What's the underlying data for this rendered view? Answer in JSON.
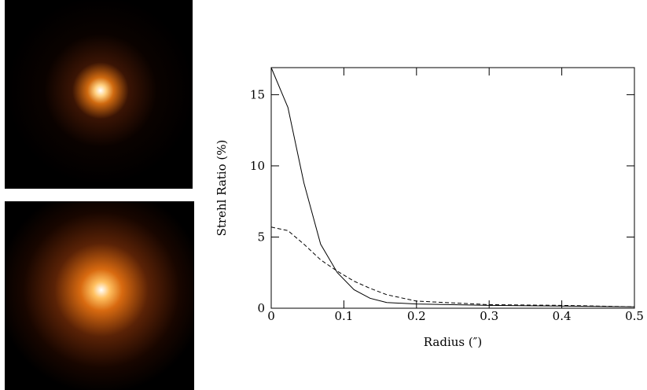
{
  "chart_data": {
    "type": "line",
    "x_label": "Radius (″)",
    "y_label": "Strehl Ratio (%)",
    "x": [
      0,
      0.023,
      0.045,
      0.068,
      0.091,
      0.114,
      0.136,
      0.159,
      0.2,
      0.3,
      0.4,
      0.5
    ],
    "series": [
      {
        "color": "#000000",
        "linestyle": "solid",
        "values": [
          16.9,
          14.1,
          8.8,
          4.5,
          2.5,
          1.3,
          0.7,
          0.4,
          0.3,
          0.2,
          0.15,
          0.1
        ]
      },
      {
        "color": "#000000",
        "linestyle": "dashed",
        "values": [
          5.7,
          5.45,
          4.5,
          3.4,
          2.6,
          1.9,
          1.4,
          0.95,
          0.5,
          0.25,
          0.2,
          0.1
        ]
      }
    ],
    "xlim": [
      0,
      0.5
    ],
    "xticks": [
      0,
      0.1,
      0.2,
      0.3,
      0.4,
      0.5
    ],
    "ylim": [
      0,
      16.9
    ],
    "yticks": [
      0,
      5,
      10,
      15
    ]
  }
}
